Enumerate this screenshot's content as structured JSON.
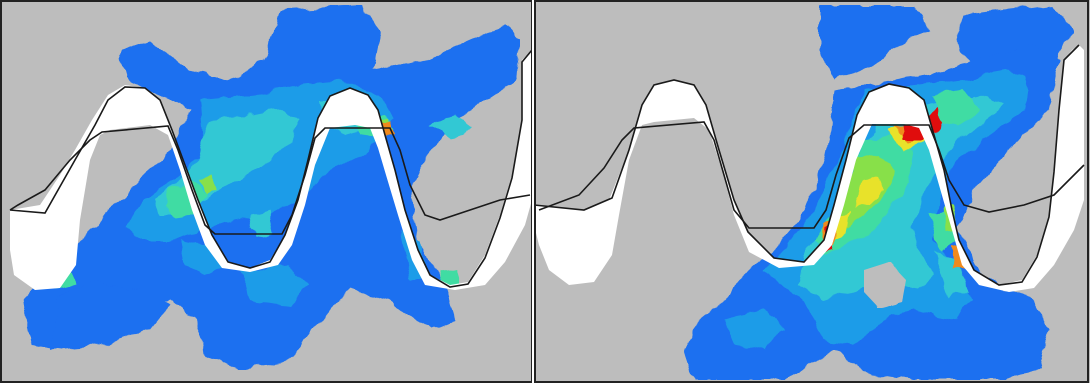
{
  "figure": {
    "panels": [
      {
        "id": "left",
        "contour": "stress-field-left"
      },
      {
        "id": "right",
        "contour": "stress-field-right"
      }
    ],
    "colors": {
      "background": "#bdbdbd",
      "tooth_fill": "#ffffff",
      "outline": "#1a1a1a",
      "frame": "#222222",
      "divider": "#ffffff",
      "scale": [
        "#1b6ff0",
        "#1f9ce8",
        "#33c8d4",
        "#3fdca3",
        "#88e04a",
        "#e8e22a",
        "#f08a1a",
        "#e01010"
      ]
    }
  }
}
